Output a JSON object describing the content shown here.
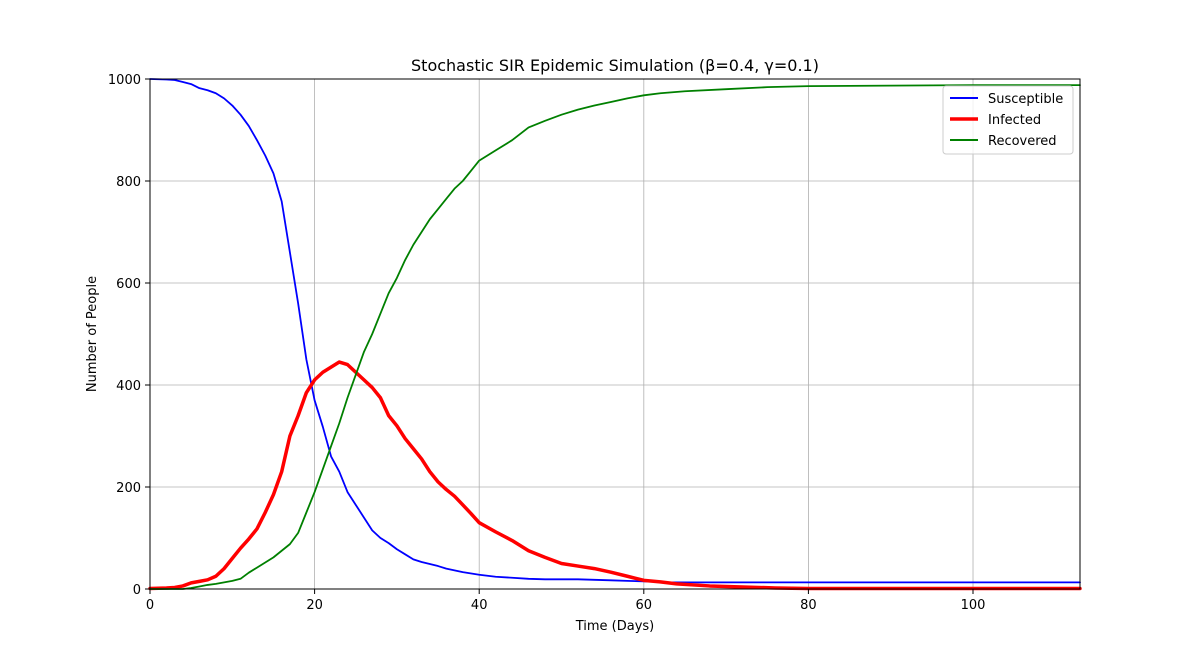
{
  "chart_data": {
    "type": "line",
    "title": "Stochastic SIR Epidemic Simulation (β=0.4, γ=0.1)",
    "xlabel": "Time (Days)",
    "ylabel": "Number of People",
    "xlim": [
      0,
      113
    ],
    "ylim": [
      0,
      1000
    ],
    "xticks": [
      0,
      20,
      40,
      60,
      80,
      100
    ],
    "yticks": [
      0,
      200,
      400,
      600,
      800,
      1000
    ],
    "grid": true,
    "legend_position": "top-right",
    "series": [
      {
        "name": "Susceptible",
        "color": "#0000ff",
        "linewidth": "normal",
        "x": [
          0,
          2,
          3,
          4,
          5,
          6,
          7,
          8,
          9,
          10,
          11,
          12,
          13,
          14,
          15,
          16,
          17,
          18,
          19,
          20,
          21,
          22,
          23,
          24,
          25,
          26,
          27,
          28,
          29,
          30,
          31,
          32,
          33,
          34,
          35,
          36,
          38,
          40,
          42,
          44,
          46,
          48,
          50,
          52,
          54,
          56,
          58,
          60,
          62,
          63,
          70,
          80,
          90,
          100,
          113
        ],
        "y": [
          1000,
          999,
          998,
          994,
          990,
          982,
          978,
          972,
          962,
          948,
          930,
          908,
          880,
          850,
          815,
          760,
          660,
          560,
          450,
          370,
          318,
          260,
          230,
          190,
          165,
          140,
          115,
          100,
          90,
          78,
          68,
          58,
          53,
          49,
          45,
          40,
          33,
          28,
          24,
          22,
          20,
          19,
          19,
          19,
          18,
          17,
          16,
          15,
          14,
          13,
          13,
          13,
          13,
          13,
          13
        ]
      },
      {
        "name": "Infected",
        "color": "#ff0000",
        "linewidth": "thick",
        "x": [
          0,
          2,
          3,
          4,
          5,
          6,
          7,
          8,
          9,
          10,
          11,
          12,
          13,
          14,
          15,
          16,
          17,
          18,
          19,
          20,
          21,
          22,
          23,
          24,
          25,
          26,
          27,
          28,
          29,
          30,
          31,
          32,
          33,
          34,
          35,
          36,
          37,
          38,
          39,
          40,
          42,
          44,
          46,
          48,
          50,
          52,
          54,
          56,
          58,
          60,
          62,
          64,
          68,
          72,
          76,
          80,
          90,
          100,
          113
        ],
        "y": [
          1,
          2,
          3,
          6,
          12,
          15,
          18,
          25,
          40,
          60,
          80,
          98,
          118,
          150,
          185,
          230,
          300,
          340,
          385,
          410,
          425,
          435,
          445,
          440,
          425,
          410,
          395,
          375,
          340,
          320,
          295,
          275,
          255,
          230,
          210,
          195,
          182,
          165,
          148,
          130,
          112,
          95,
          75,
          62,
          50,
          45,
          40,
          33,
          25,
          17,
          14,
          10,
          6,
          4,
          2,
          1,
          1,
          1,
          1
        ]
      },
      {
        "name": "Recovered",
        "color": "#008000",
        "linewidth": "normal",
        "x": [
          0,
          4,
          5,
          6,
          7,
          8,
          9,
          10,
          11,
          12,
          13,
          14,
          15,
          16,
          17,
          18,
          19,
          20,
          21,
          22,
          23,
          24,
          25,
          26,
          27,
          28,
          29,
          30,
          31,
          32,
          33,
          34,
          35,
          36,
          37,
          38,
          39,
          40,
          42,
          44,
          46,
          48,
          50,
          52,
          54,
          56,
          58,
          60,
          62,
          65,
          70,
          75,
          80,
          90,
          100,
          113
        ],
        "y": [
          0,
          0,
          2,
          5,
          8,
          10,
          13,
          16,
          20,
          32,
          42,
          52,
          62,
          75,
          88,
          110,
          150,
          190,
          235,
          280,
          325,
          375,
          420,
          465,
          500,
          540,
          580,
          610,
          645,
          675,
          700,
          725,
          745,
          765,
          785,
          800,
          820,
          840,
          860,
          880,
          905,
          918,
          930,
          940,
          948,
          955,
          962,
          968,
          972,
          976,
          980,
          984,
          986,
          987,
          988,
          988
        ]
      }
    ]
  }
}
